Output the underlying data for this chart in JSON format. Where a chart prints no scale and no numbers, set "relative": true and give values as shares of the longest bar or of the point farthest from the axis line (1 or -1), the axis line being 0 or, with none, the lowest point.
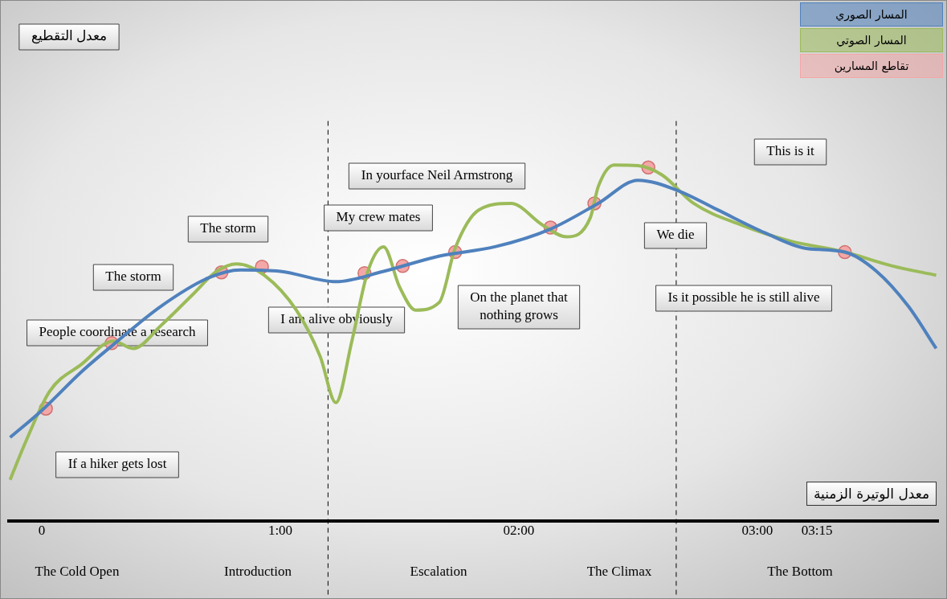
{
  "chart_data": {
    "type": "line",
    "relative": true,
    "xlabel": "معدل الوتيرة الزمنية",
    "marker": "none",
    "legend": "top right",
    "xlim": [
      -0.14,
      3.76
    ],
    "xticks": [
      0,
      {
        "value": 1,
        "label": "1:00"
      },
      {
        "value": 2,
        "label": "02:00"
      },
      {
        "value": 3,
        "label": "03:00"
      },
      {
        "value": 3.25,
        "label": "03:15"
      }
    ],
    "series": [
      {
        "name": "المسار الصوري",
        "color": "#4f81bd",
        "x": [
          -0.133,
          0,
          0.167,
          0.3,
          0.5,
          0.7,
          0.833,
          1.0,
          1.233,
          1.433,
          1.667,
          1.9,
          2.133,
          2.333,
          2.5,
          2.667,
          2.833,
          3.033,
          3.2,
          3.367,
          3.5,
          3.633,
          3.75
        ],
        "values": [
          0.234,
          0.31,
          0.419,
          0.495,
          0.603,
          0.683,
          0.705,
          0.701,
          0.672,
          0.701,
          0.744,
          0.77,
          0.82,
          0.892,
          0.957,
          0.928,
          0.874,
          0.809,
          0.766,
          0.755,
          0.701,
          0.603,
          0.484
        ]
      },
      {
        "name": "المسار الصوتي",
        "color": "#9bbb59",
        "x": [
          -0.133,
          -0.067,
          0.033,
          0.167,
          0.3,
          0.383,
          0.5,
          0.633,
          0.733,
          0.817,
          0.933,
          1.067,
          1.167,
          1.233,
          1.3,
          1.367,
          1.433,
          1.5,
          1.567,
          1.667,
          1.733,
          1.833,
          1.967,
          2.1,
          2.2,
          2.3,
          2.333,
          2.4,
          2.5,
          2.6,
          2.733,
          2.933,
          3.133,
          3.367,
          3.567,
          3.75
        ],
        "values": [
          0.115,
          0.223,
          0.364,
          0.44,
          0.505,
          0.484,
          0.549,
          0.636,
          0.701,
          0.722,
          0.69,
          0.592,
          0.462,
          0.332,
          0.505,
          0.701,
          0.77,
          0.657,
          0.592,
          0.614,
          0.766,
          0.874,
          0.892,
          0.831,
          0.798,
          0.852,
          0.939,
          1,
          0.998,
          0.972,
          0.892,
          0.831,
          0.787,
          0.755,
          0.716,
          0.69
        ]
      },
      {
        "name": "تقاطع المسارين",
        "type": "scatter",
        "marker": "circle",
        "color": "#f4a7a7",
        "x": [
          0.017,
          0.293,
          0.753,
          0.923,
          1.353,
          1.513,
          1.733,
          2.133,
          2.317,
          2.543,
          3.367
        ],
        "values": [
          0.315,
          0.499,
          0.698,
          0.714,
          0.696,
          0.716,
          0.755,
          0.824,
          0.892,
          0.993,
          0.755
        ]
      }
    ],
    "ref_lines": [
      {
        "axis": "x",
        "value": 1.2,
        "color": "#000000",
        "line_style": "dashed"
      },
      {
        "axis": "x",
        "value": 2.66,
        "color": "#000000",
        "line_style": "dashed"
      }
    ],
    "annotations": [
      "معدل التقطيع",
      "If a hiker gets lost",
      "People coordinate a research",
      "The storm",
      "The storm",
      "I am alive obviously",
      "My crew mates",
      "In yourface Neil Armstrong",
      "On the planet that\nnothing grows",
      "We die",
      "This is it",
      "Is it possible he is still alive",
      "The Cold Open",
      "Introduction",
      "Escalation",
      "The Climax",
      "The Bottom"
    ]
  }
}
